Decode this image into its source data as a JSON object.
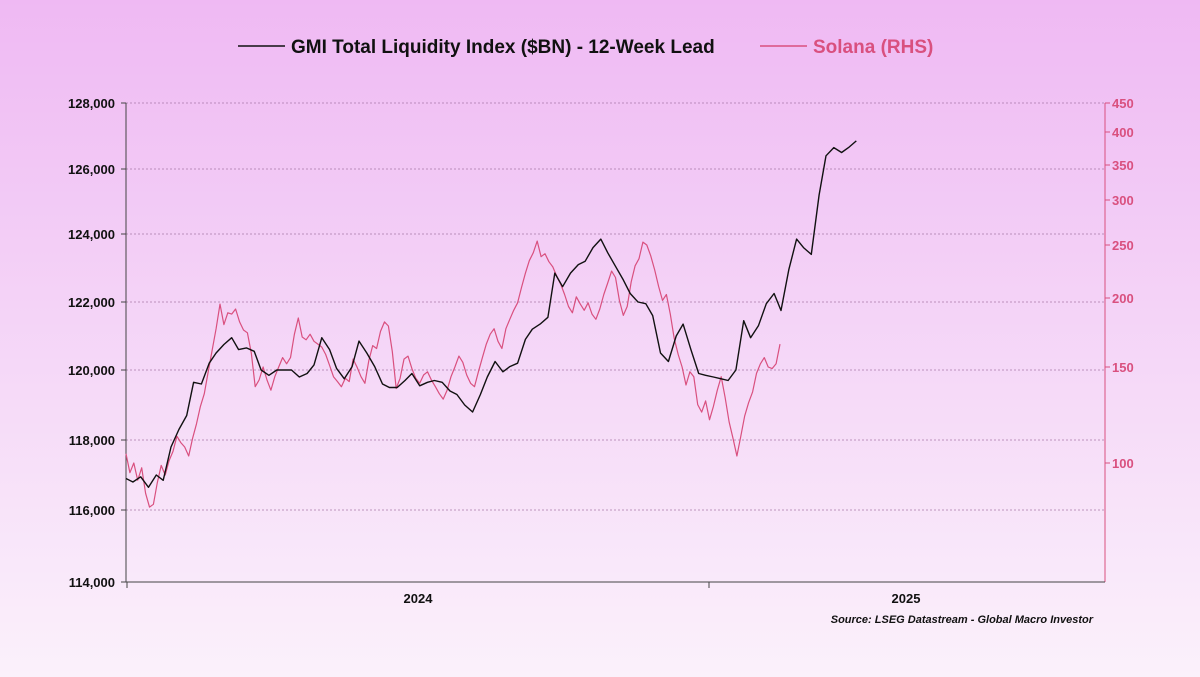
{
  "chart_data": {
    "type": "line",
    "legend_position": "top-center",
    "grid": true,
    "colors": {
      "gmi": "#111111",
      "solana": "#d9507f"
    },
    "y_left": {
      "ylim": [
        114000,
        128000
      ],
      "ticks": [
        "114,000",
        "116,000",
        "118,000",
        "120,000",
        "122,000",
        "124,000",
        "126,000",
        "128,000"
      ]
    },
    "y_right": {
      "scale": "log",
      "ylim": [
        70,
        450
      ],
      "ticks": [
        "100",
        "150",
        "200",
        "250",
        "300",
        "350",
        "400",
        "450"
      ]
    },
    "x_axis": {
      "tick_labels": [
        "2024",
        "2025"
      ]
    },
    "series": [
      {
        "name": "GMI Total Liquidity Index ($BN) - 12-Week Lead",
        "axis": "left",
        "points": [
          [
            0.0,
            116900
          ],
          [
            0.007,
            116800
          ],
          [
            0.015,
            116950
          ],
          [
            0.023,
            116650
          ],
          [
            0.031,
            117000
          ],
          [
            0.038,
            116850
          ],
          [
            0.046,
            117800
          ],
          [
            0.054,
            118300
          ],
          [
            0.062,
            118700
          ],
          [
            0.069,
            119650
          ],
          [
            0.077,
            119600
          ],
          [
            0.085,
            120200
          ],
          [
            0.092,
            120500
          ],
          [
            0.1,
            120750
          ],
          [
            0.108,
            120950
          ],
          [
            0.115,
            120600
          ],
          [
            0.123,
            120650
          ],
          [
            0.131,
            120550
          ],
          [
            0.138,
            120000
          ],
          [
            0.146,
            119850
          ],
          [
            0.154,
            120000
          ],
          [
            0.162,
            120000
          ],
          [
            0.169,
            120000
          ],
          [
            0.177,
            119800
          ],
          [
            0.185,
            119900
          ],
          [
            0.192,
            120150
          ],
          [
            0.2,
            120950
          ],
          [
            0.208,
            120600
          ],
          [
            0.215,
            120050
          ],
          [
            0.223,
            119750
          ],
          [
            0.231,
            120100
          ],
          [
            0.238,
            120850
          ],
          [
            0.246,
            120500
          ],
          [
            0.254,
            120100
          ],
          [
            0.262,
            119600
          ],
          [
            0.269,
            119500
          ],
          [
            0.277,
            119500
          ],
          [
            0.285,
            119700
          ],
          [
            0.292,
            119900
          ],
          [
            0.3,
            119550
          ],
          [
            0.308,
            119650
          ],
          [
            0.315,
            119700
          ],
          [
            0.323,
            119650
          ],
          [
            0.331,
            119400
          ],
          [
            0.338,
            119300
          ],
          [
            0.346,
            119000
          ],
          [
            0.354,
            118800
          ],
          [
            0.362,
            119300
          ],
          [
            0.369,
            119800
          ],
          [
            0.377,
            120250
          ],
          [
            0.385,
            119950
          ],
          [
            0.392,
            120100
          ],
          [
            0.4,
            120200
          ],
          [
            0.408,
            120900
          ],
          [
            0.415,
            121200
          ],
          [
            0.423,
            121350
          ],
          [
            0.431,
            121550
          ],
          [
            0.438,
            122850
          ],
          [
            0.446,
            122450
          ],
          [
            0.454,
            122850
          ],
          [
            0.462,
            123100
          ],
          [
            0.469,
            123200
          ],
          [
            0.477,
            123600
          ],
          [
            0.485,
            123850
          ],
          [
            0.492,
            123450
          ],
          [
            0.5,
            123050
          ],
          [
            0.508,
            122650
          ],
          [
            0.515,
            122250
          ],
          [
            0.523,
            122000
          ],
          [
            0.531,
            121950
          ],
          [
            0.538,
            121600
          ],
          [
            0.546,
            120500
          ],
          [
            0.554,
            120250
          ],
          [
            0.562,
            121000
          ],
          [
            0.569,
            121350
          ],
          [
            0.577,
            120600
          ],
          [
            0.585,
            119900
          ],
          [
            0.592,
            119850
          ],
          [
            0.6,
            119800
          ],
          [
            0.608,
            119750
          ],
          [
            0.615,
            119700
          ],
          [
            0.623,
            120000
          ],
          [
            0.631,
            121450
          ],
          [
            0.638,
            120950
          ],
          [
            0.646,
            121300
          ],
          [
            0.654,
            121950
          ],
          [
            0.662,
            122250
          ],
          [
            0.669,
            121750
          ],
          [
            0.677,
            122950
          ],
          [
            0.685,
            123850
          ],
          [
            0.692,
            123600
          ],
          [
            0.7,
            123400
          ],
          [
            0.708,
            125200
          ],
          [
            0.715,
            126400
          ],
          [
            0.723,
            126650
          ],
          [
            0.731,
            126500
          ],
          [
            0.738,
            126650
          ],
          [
            0.746,
            126850
          ]
        ]
      },
      {
        "name": "Solana (RHS)",
        "axis": "right",
        "points": [
          [
            0.0,
            104
          ],
          [
            0.004,
            96
          ],
          [
            0.008,
            100
          ],
          [
            0.012,
            93
          ],
          [
            0.016,
            98
          ],
          [
            0.02,
            88
          ],
          [
            0.024,
            83
          ],
          [
            0.028,
            84
          ],
          [
            0.032,
            92
          ],
          [
            0.036,
            99
          ],
          [
            0.04,
            95
          ],
          [
            0.044,
            101
          ],
          [
            0.048,
            105
          ],
          [
            0.052,
            112
          ],
          [
            0.056,
            109
          ],
          [
            0.06,
            107
          ],
          [
            0.064,
            103
          ],
          [
            0.068,
            111
          ],
          [
            0.072,
            118
          ],
          [
            0.076,
            127
          ],
          [
            0.08,
            134
          ],
          [
            0.084,
            147
          ],
          [
            0.088,
            161
          ],
          [
            0.092,
            176
          ],
          [
            0.096,
            195
          ],
          [
            0.1,
            179
          ],
          [
            0.104,
            188
          ],
          [
            0.108,
            187
          ],
          [
            0.112,
            191
          ],
          [
            0.116,
            181
          ],
          [
            0.12,
            175
          ],
          [
            0.124,
            173
          ],
          [
            0.128,
            159
          ],
          [
            0.132,
            138
          ],
          [
            0.136,
            142
          ],
          [
            0.14,
            150
          ],
          [
            0.144,
            142
          ],
          [
            0.148,
            136
          ],
          [
            0.152,
            144
          ],
          [
            0.156,
            150
          ],
          [
            0.16,
            156
          ],
          [
            0.164,
            152
          ],
          [
            0.168,
            156
          ],
          [
            0.172,
            172
          ],
          [
            0.176,
            184
          ],
          [
            0.18,
            170
          ],
          [
            0.184,
            168
          ],
          [
            0.188,
            172
          ],
          [
            0.192,
            167
          ],
          [
            0.196,
            165
          ],
          [
            0.2,
            163
          ],
          [
            0.204,
            158
          ],
          [
            0.208,
            151
          ],
          [
            0.212,
            144
          ],
          [
            0.216,
            141
          ],
          [
            0.22,
            138
          ],
          [
            0.224,
            143
          ],
          [
            0.228,
            141
          ],
          [
            0.232,
            155
          ],
          [
            0.236,
            150
          ],
          [
            0.24,
            144
          ],
          [
            0.244,
            140
          ],
          [
            0.248,
            154
          ],
          [
            0.252,
            164
          ],
          [
            0.256,
            162
          ],
          [
            0.26,
            174
          ],
          [
            0.264,
            181
          ],
          [
            0.268,
            178
          ],
          [
            0.272,
            160
          ],
          [
            0.276,
            137
          ],
          [
            0.28,
            143
          ],
          [
            0.284,
            155
          ],
          [
            0.288,
            157
          ],
          [
            0.292,
            149
          ],
          [
            0.296,
            143
          ],
          [
            0.3,
            140
          ],
          [
            0.304,
            145
          ],
          [
            0.308,
            147
          ],
          [
            0.312,
            142
          ],
          [
            0.316,
            138
          ],
          [
            0.32,
            134
          ],
          [
            0.324,
            131
          ],
          [
            0.328,
            136
          ],
          [
            0.332,
            144
          ],
          [
            0.336,
            150
          ],
          [
            0.34,
            157
          ],
          [
            0.344,
            153
          ],
          [
            0.348,
            145
          ],
          [
            0.352,
            140
          ],
          [
            0.356,
            138
          ],
          [
            0.36,
            147
          ],
          [
            0.364,
            156
          ],
          [
            0.368,
            165
          ],
          [
            0.372,
            172
          ],
          [
            0.376,
            176
          ],
          [
            0.38,
            167
          ],
          [
            0.384,
            162
          ],
          [
            0.388,
            176
          ],
          [
            0.392,
            183
          ],
          [
            0.396,
            190
          ],
          [
            0.4,
            196
          ],
          [
            0.404,
            209
          ],
          [
            0.408,
            222
          ],
          [
            0.412,
            234
          ],
          [
            0.416,
            242
          ],
          [
            0.42,
            254
          ],
          [
            0.424,
            238
          ],
          [
            0.428,
            241
          ],
          [
            0.432,
            233
          ],
          [
            0.436,
            228
          ],
          [
            0.44,
            219
          ],
          [
            0.444,
            212
          ],
          [
            0.448,
            203
          ],
          [
            0.452,
            193
          ],
          [
            0.456,
            188
          ],
          [
            0.46,
            201
          ],
          [
            0.464,
            195
          ],
          [
            0.468,
            190
          ],
          [
            0.472,
            196
          ],
          [
            0.476,
            187
          ],
          [
            0.48,
            183
          ],
          [
            0.484,
            191
          ],
          [
            0.488,
            203
          ],
          [
            0.492,
            213
          ],
          [
            0.496,
            224
          ],
          [
            0.5,
            218
          ],
          [
            0.504,
            198
          ],
          [
            0.508,
            186
          ],
          [
            0.512,
            193
          ],
          [
            0.516,
            214
          ],
          [
            0.52,
            229
          ],
          [
            0.524,
            236
          ],
          [
            0.528,
            253
          ],
          [
            0.532,
            250
          ],
          [
            0.536,
            239
          ],
          [
            0.54,
            225
          ],
          [
            0.544,
            210
          ],
          [
            0.548,
            198
          ],
          [
            0.552,
            203
          ],
          [
            0.556,
            187
          ],
          [
            0.56,
            169
          ],
          [
            0.564,
            158
          ],
          [
            0.568,
            150
          ],
          [
            0.572,
            139
          ],
          [
            0.576,
            147
          ],
          [
            0.58,
            144
          ],
          [
            0.584,
            128
          ],
          [
            0.588,
            124
          ],
          [
            0.592,
            130
          ],
          [
            0.596,
            120
          ],
          [
            0.6,
            127
          ],
          [
            0.604,
            136
          ],
          [
            0.608,
            144
          ],
          [
            0.612,
            132
          ],
          [
            0.616,
            119
          ],
          [
            0.62,
            111
          ],
          [
            0.624,
            103
          ],
          [
            0.628,
            112
          ],
          [
            0.632,
            122
          ],
          [
            0.636,
            129
          ],
          [
            0.64,
            135
          ],
          [
            0.644,
            146
          ],
          [
            0.648,
            152
          ],
          [
            0.652,
            156
          ],
          [
            0.656,
            150
          ],
          [
            0.66,
            149
          ],
          [
            0.664,
            152
          ],
          [
            0.668,
            165
          ]
        ]
      }
    ]
  },
  "source": "Source: LSEG Datastream - Global Macro Investor"
}
